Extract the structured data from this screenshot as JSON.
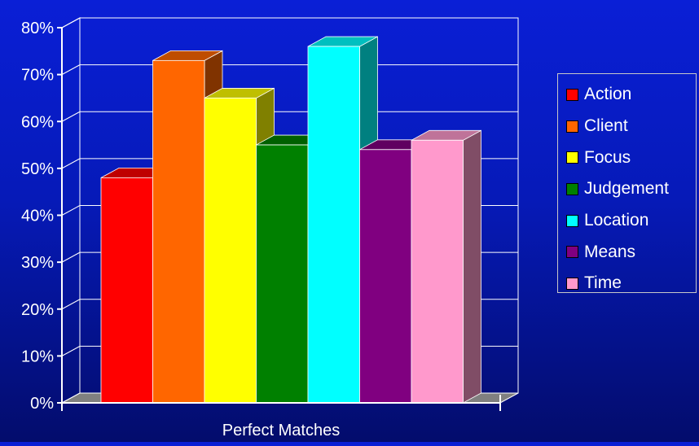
{
  "chart_data": {
    "type": "bar",
    "style": "3d-clustered-column",
    "categories": [
      "Perfect Matches"
    ],
    "series": [
      {
        "name": "Action",
        "values": [
          48
        ],
        "color": "#ff0000"
      },
      {
        "name": "Client",
        "values": [
          73
        ],
        "color": "#ff6600"
      },
      {
        "name": "Focus",
        "values": [
          65
        ],
        "color": "#ffff00"
      },
      {
        "name": "Judgement",
        "values": [
          55
        ],
        "color": "#008000"
      },
      {
        "name": "Location",
        "values": [
          76
        ],
        "color": "#00ffff"
      },
      {
        "name": "Means",
        "values": [
          54
        ],
        "color": "#800080"
      },
      {
        "name": "Time",
        "values": [
          56
        ],
        "color": "#ff99cc"
      }
    ],
    "yticks": [
      "0%",
      "10%",
      "20%",
      "30%",
      "40%",
      "50%",
      "60%",
      "70%",
      "80%"
    ],
    "ylim": [
      0,
      80
    ],
    "y_unit": "%",
    "grid": true,
    "legend": "right",
    "title": "",
    "xlabel": "",
    "ylabel": ""
  }
}
